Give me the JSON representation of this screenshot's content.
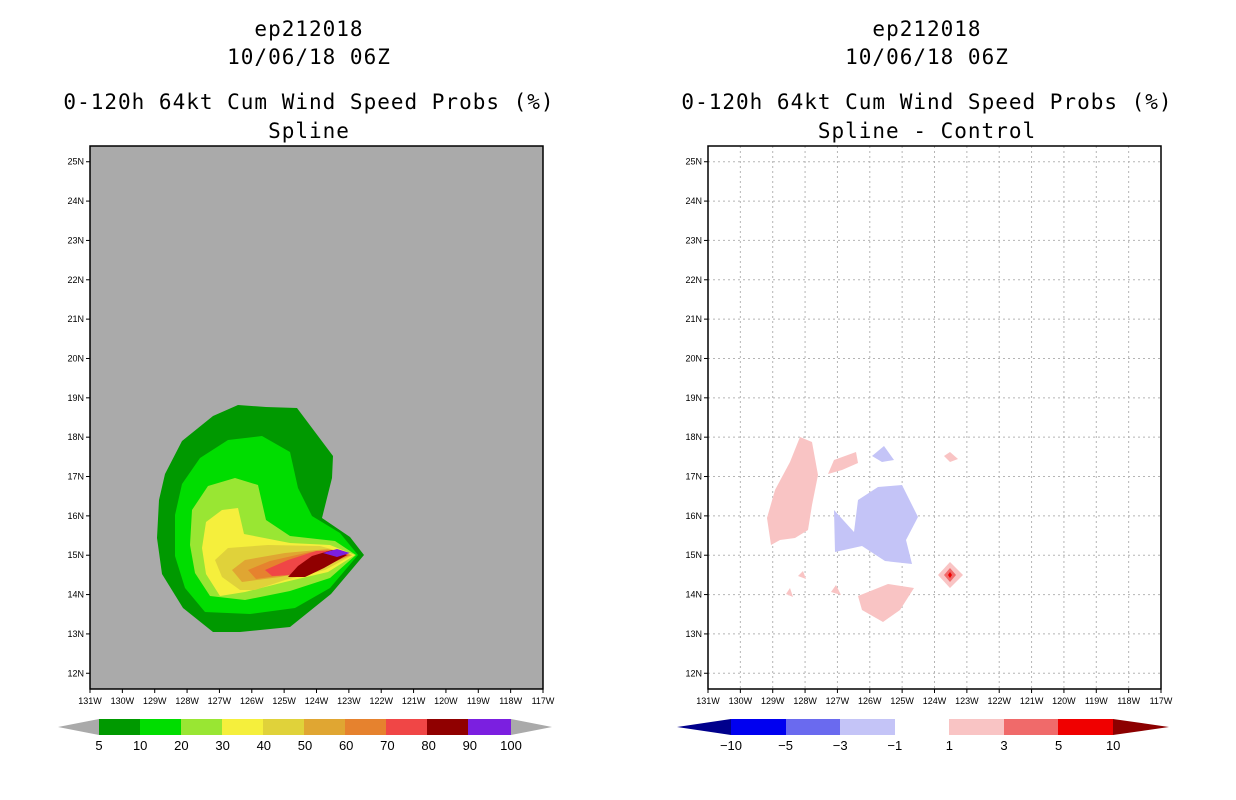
{
  "panels": [
    {
      "storm_id": "ep212018",
      "datetime": "10/06/18 06Z",
      "title": "0-120h 64kt Cum Wind Speed Probs (%)",
      "subtitle": "Spline",
      "colorbar_labels": [
        "5",
        "10",
        "20",
        "30",
        "40",
        "50",
        "60",
        "70",
        "80",
        "90",
        "100"
      ]
    },
    {
      "storm_id": "ep212018",
      "datetime": "10/06/18 06Z",
      "title": "0-120h 64kt Cum Wind Speed Probs (%)",
      "subtitle": "Spline - Control",
      "colorbar_labels": [
        "-10",
        "-5",
        "-3",
        "-1",
        "1",
        "3",
        "5",
        "10"
      ]
    }
  ],
  "chart_data": [
    {
      "type": "heatmap",
      "title": "0-120h 64kt Cum Wind Speed Probs (%)",
      "subtitle": "Spline",
      "x_ticks": [
        "131W",
        "130W",
        "129W",
        "128W",
        "127W",
        "126W",
        "125W",
        "124W",
        "123W",
        "122W",
        "121W",
        "120W",
        "119W",
        "118W",
        "117W"
      ],
      "y_ticks": [
        "12N",
        "13N",
        "14N",
        "15N",
        "16N",
        "17N",
        "18N",
        "19N",
        "20N",
        "21N",
        "22N",
        "23N",
        "24N",
        "25N"
      ],
      "xlim": [
        -131,
        -117
      ],
      "ylim": [
        11.6,
        25.4
      ],
      "levels": [
        5,
        10,
        20,
        30,
        40,
        50,
        60,
        70,
        80,
        90,
        100
      ],
      "colors": [
        "#009900",
        "#00dd00",
        "#99e633",
        "#f5ef3c",
        "#e0d23a",
        "#e0a632",
        "#e6822e",
        "#f04646",
        "#900000",
        "#7b1fe0"
      ],
      "below_color": "#aaaaaa",
      "max_center": {
        "lon": -122.8,
        "lat": 15.0,
        "value": 100
      }
    },
    {
      "type": "heatmap",
      "title": "0-120h 64kt Cum Wind Speed Probs (%)",
      "subtitle": "Spline - Control",
      "x_ticks": [
        "131W",
        "130W",
        "129W",
        "128W",
        "127W",
        "126W",
        "125W",
        "124W",
        "123W",
        "122W",
        "121W",
        "120W",
        "119W",
        "118W",
        "117W"
      ],
      "y_ticks": [
        "12N",
        "13N",
        "14N",
        "15N",
        "16N",
        "17N",
        "18N",
        "19N",
        "20N",
        "21N",
        "22N",
        "23N",
        "24N",
        "25N"
      ],
      "xlim": [
        -131,
        -117
      ],
      "ylim": [
        11.6,
        25.4
      ],
      "levels": [
        -10,
        -5,
        -3,
        -1,
        1,
        3,
        5,
        10
      ],
      "colors": [
        "#00008c",
        "#0000f0",
        "#6a6aef",
        "#c4c4f7",
        "#ffffff",
        "#f9c4c4",
        "#f06a6a",
        "#f00000",
        "#8c0000"
      ],
      "grid": true,
      "positive_region_max": {
        "lon": -123.5,
        "lat": 14.5,
        "value": 5
      }
    }
  ]
}
